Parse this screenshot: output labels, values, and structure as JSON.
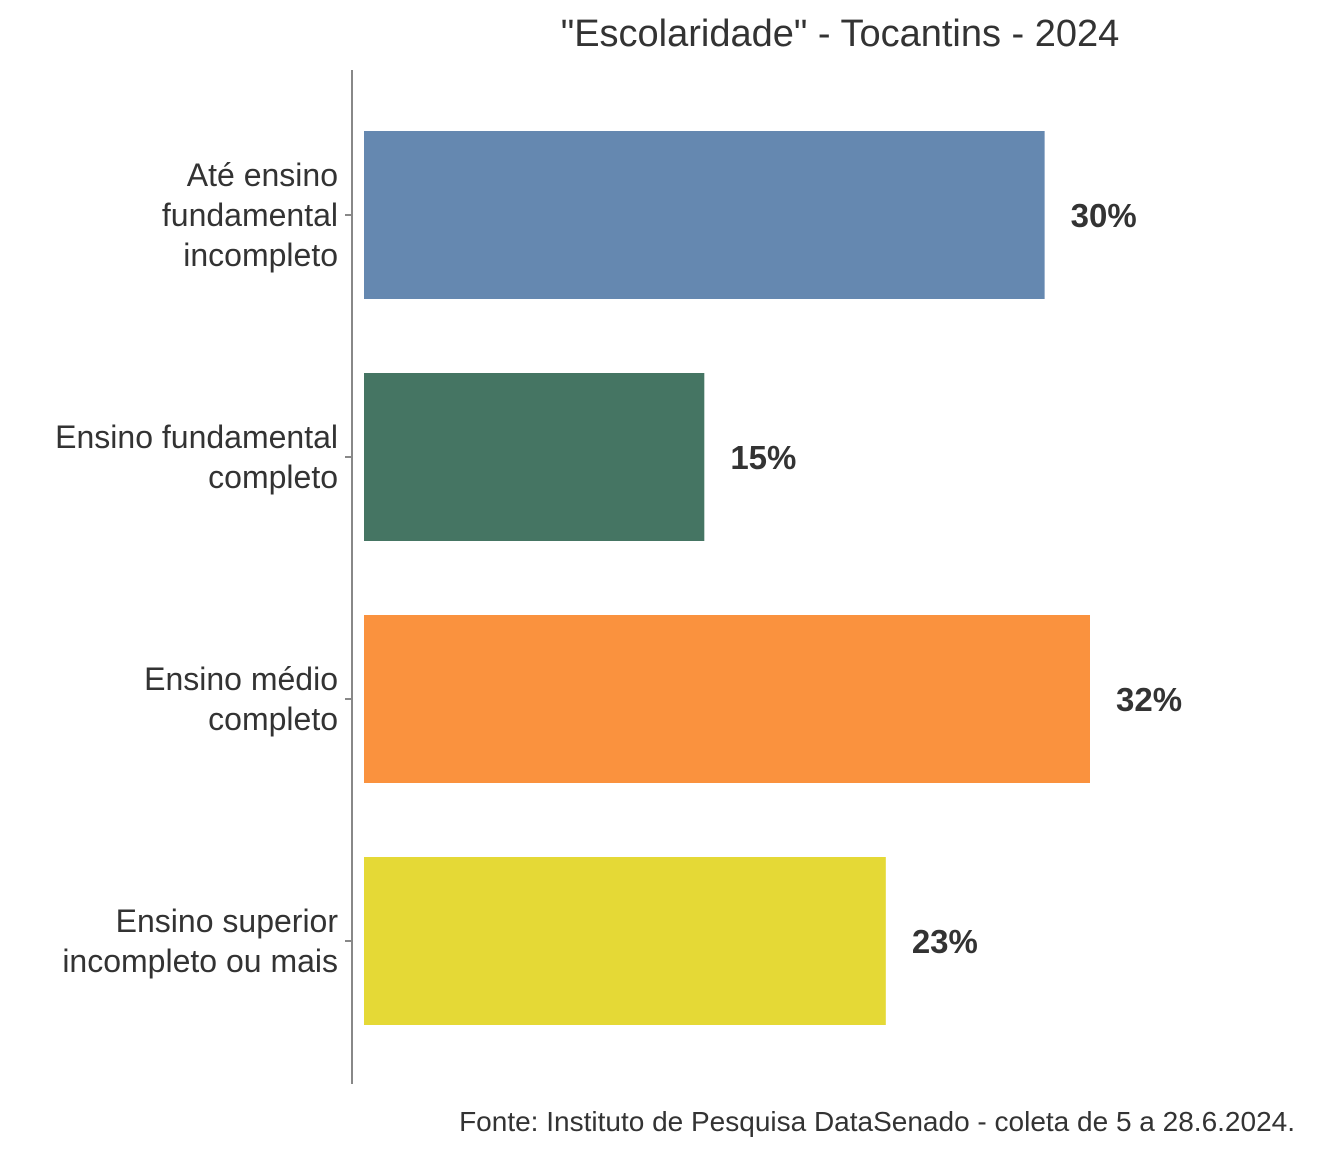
{
  "chart_data": {
    "type": "bar",
    "orientation": "horizontal",
    "title": "\"Escolaridade\" - Tocantins - 2024",
    "categories": [
      [
        "Até ensino",
        "fundamental",
        "incompleto"
      ],
      [
        "Ensino fundamental",
        "completo"
      ],
      [
        "Ensino médio",
        "completo"
      ],
      [
        "Ensino superior",
        "incompleto ou mais"
      ]
    ],
    "values": [
      30,
      15,
      32,
      23
    ],
    "value_labels": [
      "30%",
      "15%",
      "32%",
      "23%"
    ],
    "colors": [
      "#6588b0",
      "#457563",
      "#fa923e",
      "#e5d936"
    ],
    "xlim": [
      0,
      32
    ],
    "grid": false,
    "legend": "none",
    "caption": "Fonte: Instituto de Pesquisa DataSenado - coleta de 5 a 28.6.2024."
  }
}
